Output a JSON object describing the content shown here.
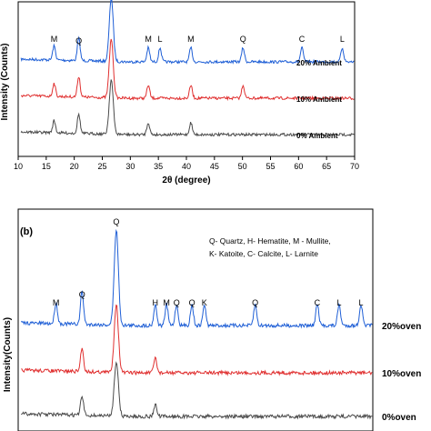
{
  "chart_data": [
    {
      "type": "line",
      "panel_label": "",
      "xlabel": "2θ (degree)",
      "ylabel": "Intensity (Counts)",
      "xlim": [
        10,
        70
      ],
      "x_ticks": [
        "10",
        "15",
        "20",
        "25",
        "30",
        "35",
        "40",
        "45",
        "50",
        "55",
        "60",
        "65",
        "70"
      ],
      "y_ticks_shown": false,
      "legend": "",
      "series": [
        {
          "name": "20% Ambient",
          "color": "#1f5fd6",
          "peaks": [
            {
              "x": 16.4,
              "label": "M"
            },
            {
              "x": 20.8,
              "label": "Q"
            },
            {
              "x": 26.6,
              "label": ""
            },
            {
              "x": 33.2,
              "label": "M"
            },
            {
              "x": 35.3,
              "label": "L"
            },
            {
              "x": 40.8,
              "label": "M"
            },
            {
              "x": 50.1,
              "label": "Q"
            },
            {
              "x": 60.6,
              "label": "C"
            },
            {
              "x": 67.8,
              "label": "L"
            }
          ]
        },
        {
          "name": "10% Ambient",
          "color": "#e03030",
          "peaks": [
            {
              "x": 16.4,
              "label": ""
            },
            {
              "x": 20.8,
              "label": ""
            },
            {
              "x": 26.6,
              "label": ""
            },
            {
              "x": 33.2,
              "label": ""
            },
            {
              "x": 40.8,
              "label": ""
            },
            {
              "x": 50.1,
              "label": ""
            }
          ]
        },
        {
          "name": "0% Ambient",
          "color": "#4a4a4a",
          "peaks": [
            {
              "x": 16.4,
              "label": ""
            },
            {
              "x": 20.8,
              "label": ""
            },
            {
              "x": 26.6,
              "label": ""
            },
            {
              "x": 33.2,
              "label": ""
            },
            {
              "x": 40.8,
              "label": ""
            }
          ]
        }
      ]
    },
    {
      "type": "line",
      "panel_label": "(b)",
      "xlabel": "",
      "ylabel": "Intensity(Counts)",
      "xlim": [
        10,
        70
      ],
      "x_ticks": [],
      "y_ticks_shown": false,
      "legend_lines": [
        "Q- Quartz, H- Hematite, M - Mullite,",
        "K- Katoite, C- Calcite, L- Larnite"
      ],
      "series": [
        {
          "name": "20%oven",
          "color": "#1f5fd6",
          "peaks": [
            {
              "x": 16.4,
              "label": "M"
            },
            {
              "x": 20.8,
              "label": "Q"
            },
            {
              "x": 26.6,
              "label": "Q"
            },
            {
              "x": 33.2,
              "label": "H"
            },
            {
              "x": 35.1,
              "label": "M"
            },
            {
              "x": 36.8,
              "label": "Q"
            },
            {
              "x": 39.4,
              "label": "Q"
            },
            {
              "x": 41.5,
              "label": "K"
            },
            {
              "x": 50.1,
              "label": "Q"
            },
            {
              "x": 60.6,
              "label": "C"
            },
            {
              "x": 64.3,
              "label": "L"
            },
            {
              "x": 68.0,
              "label": "L"
            }
          ]
        },
        {
          "name": "10%oven",
          "color": "#e03030",
          "peaks": [
            {
              "x": 20.8,
              "label": ""
            },
            {
              "x": 26.6,
              "label": ""
            },
            {
              "x": 33.2,
              "label": ""
            }
          ]
        },
        {
          "name": "0%oven",
          "color": "#4a4a4a",
          "peaks": [
            {
              "x": 20.8,
              "label": ""
            },
            {
              "x": 26.6,
              "label": ""
            },
            {
              "x": 33.2,
              "label": ""
            }
          ]
        }
      ]
    }
  ]
}
